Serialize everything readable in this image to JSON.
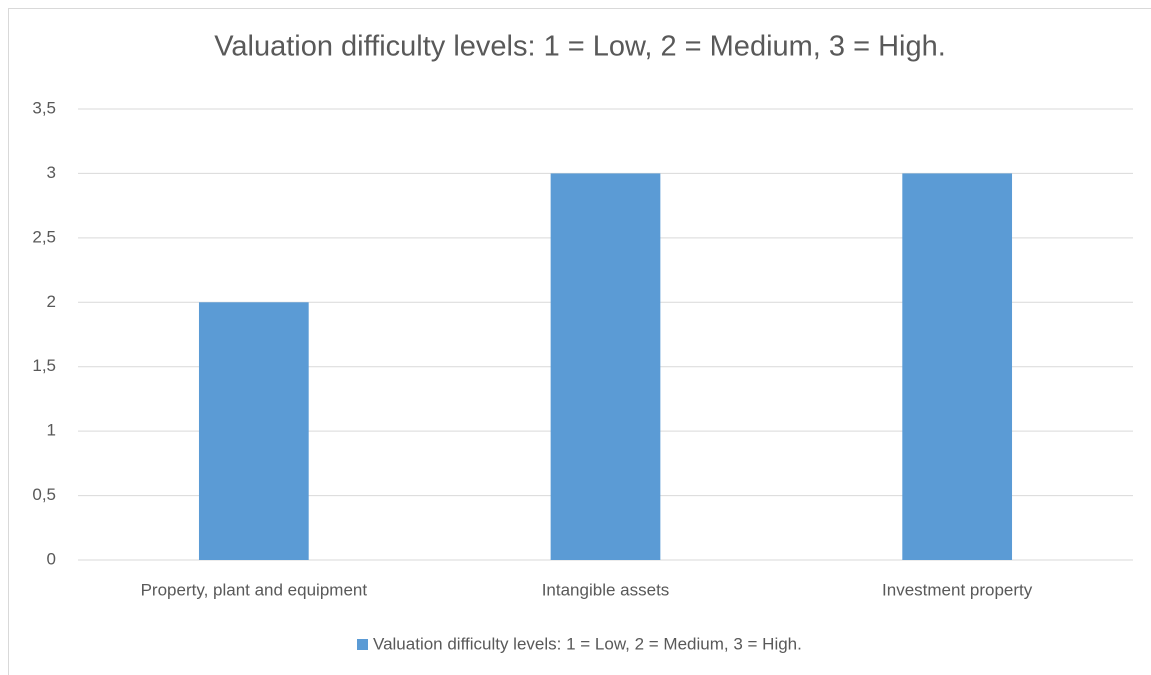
{
  "chart_data": {
    "type": "bar",
    "title": "Valuation difficulty levels: 1 = Low, 2 = Medium, 3 = High.",
    "categories": [
      "Property, plant and equipment",
      "Intangible assets",
      "Investment property"
    ],
    "series": [
      {
        "name": "Valuation difficulty levels: 1 = Low, 2 = Medium, 3 = High.",
        "color": "#5b9bd5",
        "values": [
          2,
          3,
          3
        ]
      }
    ],
    "ylim": [
      0,
      3.5
    ],
    "yticks": [
      0,
      {
        "value": 0.5,
        "label": "0,5"
      },
      1,
      {
        "value": 1.5,
        "label": "1,5"
      },
      2,
      {
        "value": 2.5,
        "label": "2,5"
      },
      3,
      {
        "value": 3.5,
        "label": "3,5"
      }
    ],
    "grid": true,
    "legend": "bottom"
  }
}
